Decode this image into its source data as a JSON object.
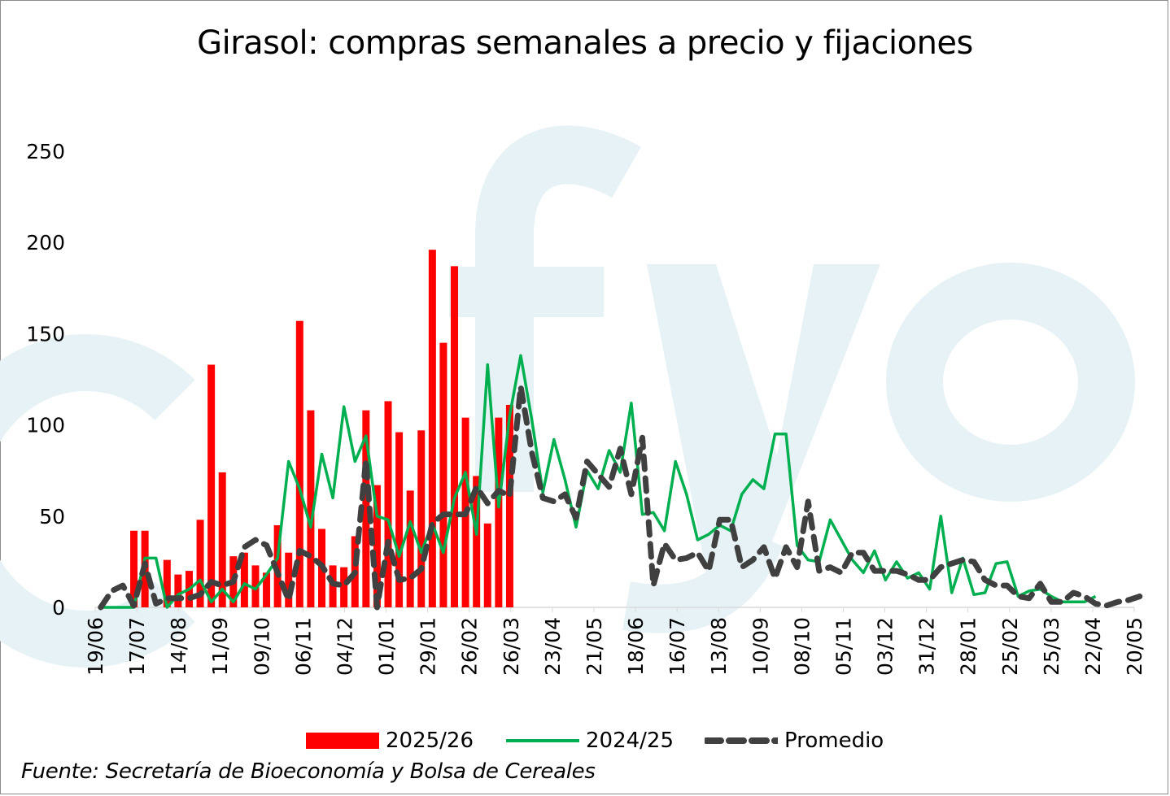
{
  "chart_data": {
    "type": "bar",
    "title": "Girasol: compras semanales a precio y fijaciones",
    "xlabel": "",
    "ylabel": "",
    "ylim": [
      0,
      250
    ],
    "y_ticks": [
      "0",
      "50",
      "100",
      "150",
      "200",
      "250"
    ],
    "x_tick_labels": [
      "19/06",
      "17/07",
      "14/08",
      "11/09",
      "09/10",
      "06/11",
      "04/12",
      "01/01",
      "29/01",
      "26/02",
      "26/03",
      "23/04",
      "21/05",
      "18/06",
      "16/07",
      "13/08",
      "10/09",
      "08/10",
      "05/11",
      "03/12",
      "31/12",
      "28/01",
      "25/02",
      "25/03",
      "22/04",
      "20/05"
    ],
    "grid": false,
    "legend_position": "bottom",
    "watermark": "cfyo",
    "series": [
      {
        "name": "2025/26",
        "type": "bar",
        "color": "#ff0000",
        "values": [
          0,
          0,
          0,
          42,
          42,
          0,
          26,
          18,
          20,
          48,
          133,
          74,
          28,
          30,
          23,
          19,
          45,
          30,
          157,
          108,
          43,
          23,
          22,
          39,
          108,
          67,
          113,
          96,
          64,
          97,
          196,
          145,
          187,
          104,
          72,
          46,
          104,
          111
        ]
      },
      {
        "name": "2024/25",
        "type": "line",
        "color": "#00b050",
        "values": [
          0,
          0,
          0,
          0,
          27,
          27,
          0,
          7,
          10,
          15,
          3,
          10,
          3,
          13,
          10,
          18,
          27,
          80,
          65,
          44,
          84,
          60,
          110,
          80,
          94,
          50,
          48,
          28,
          47,
          30,
          46,
          30,
          60,
          74,
          40,
          133,
          55,
          105,
          138,
          103,
          63,
          92,
          70,
          44,
          75,
          65,
          86,
          74,
          112,
          51,
          52,
          42,
          80,
          62,
          37,
          40,
          45,
          42,
          62,
          70,
          65,
          95,
          95,
          34,
          26,
          25,
          48,
          37,
          26,
          19,
          31,
          15,
          25,
          16,
          19,
          10,
          50,
          8,
          27,
          7,
          8,
          24,
          25,
          6,
          9,
          10,
          6,
          3,
          3,
          3,
          6
        ]
      },
      {
        "name": "Promedio",
        "type": "line",
        "color": "#404040",
        "dashed": true,
        "values": [
          0,
          9,
          12,
          1,
          24,
          2,
          5,
          5,
          5,
          7,
          14,
          12,
          14,
          33,
          37,
          34,
          19,
          4,
          31,
          28,
          23,
          13,
          12,
          19,
          81,
          0,
          36,
          15,
          16,
          21,
          46,
          51,
          51,
          51,
          66,
          57,
          64,
          61,
          121,
          85,
          60,
          58,
          62,
          49,
          80,
          73,
          66,
          87,
          62,
          93,
          12,
          35,
          26,
          27,
          30,
          20,
          48,
          48,
          22,
          26,
          33,
          16,
          33,
          22,
          58,
          20,
          22,
          19,
          30,
          30,
          20,
          20,
          20,
          18,
          15,
          15,
          22,
          24,
          26,
          25,
          15,
          12,
          12,
          6,
          5,
          13,
          3,
          3,
          8,
          6,
          2,
          1,
          3,
          4,
          6
        ]
      }
    ]
  },
  "source_text": "Fuente: Secretaría de Bioeconomía y Bolsa de Cereales"
}
